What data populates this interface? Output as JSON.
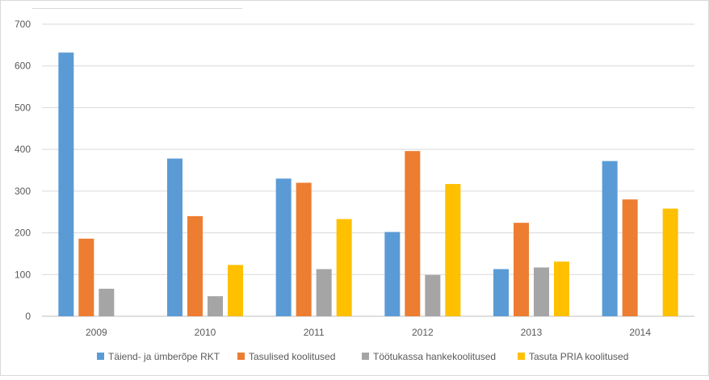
{
  "chart_data": {
    "type": "bar",
    "title": "",
    "xlabel": "",
    "ylabel": "",
    "categories": [
      "2009",
      "2010",
      "2011",
      "2012",
      "2013",
      "2014"
    ],
    "ylim": [
      0,
      700
    ],
    "yticks": [
      "0",
      "100",
      "200",
      "300",
      "400",
      "500",
      "600",
      "700"
    ],
    "grid": true,
    "legend_position": "bottom",
    "series": [
      {
        "name": "Täiend- ja ümberõpe RKT",
        "color": "#5B9BD5",
        "values": [
          632,
          378,
          330,
          202,
          113,
          372
        ]
      },
      {
        "name": "Tasulised koolitused",
        "color": "#ED7D31",
        "values": [
          186,
          240,
          320,
          396,
          224,
          280
        ]
      },
      {
        "name": "Töötukassa hankekoolitused",
        "color": "#A5A5A5",
        "values": [
          66,
          48,
          113,
          99,
          117,
          null
        ]
      },
      {
        "name": "Tasuta PRIA koolitused",
        "color": "#FFC000",
        "values": [
          null,
          123,
          233,
          317,
          131,
          258
        ]
      }
    ]
  }
}
